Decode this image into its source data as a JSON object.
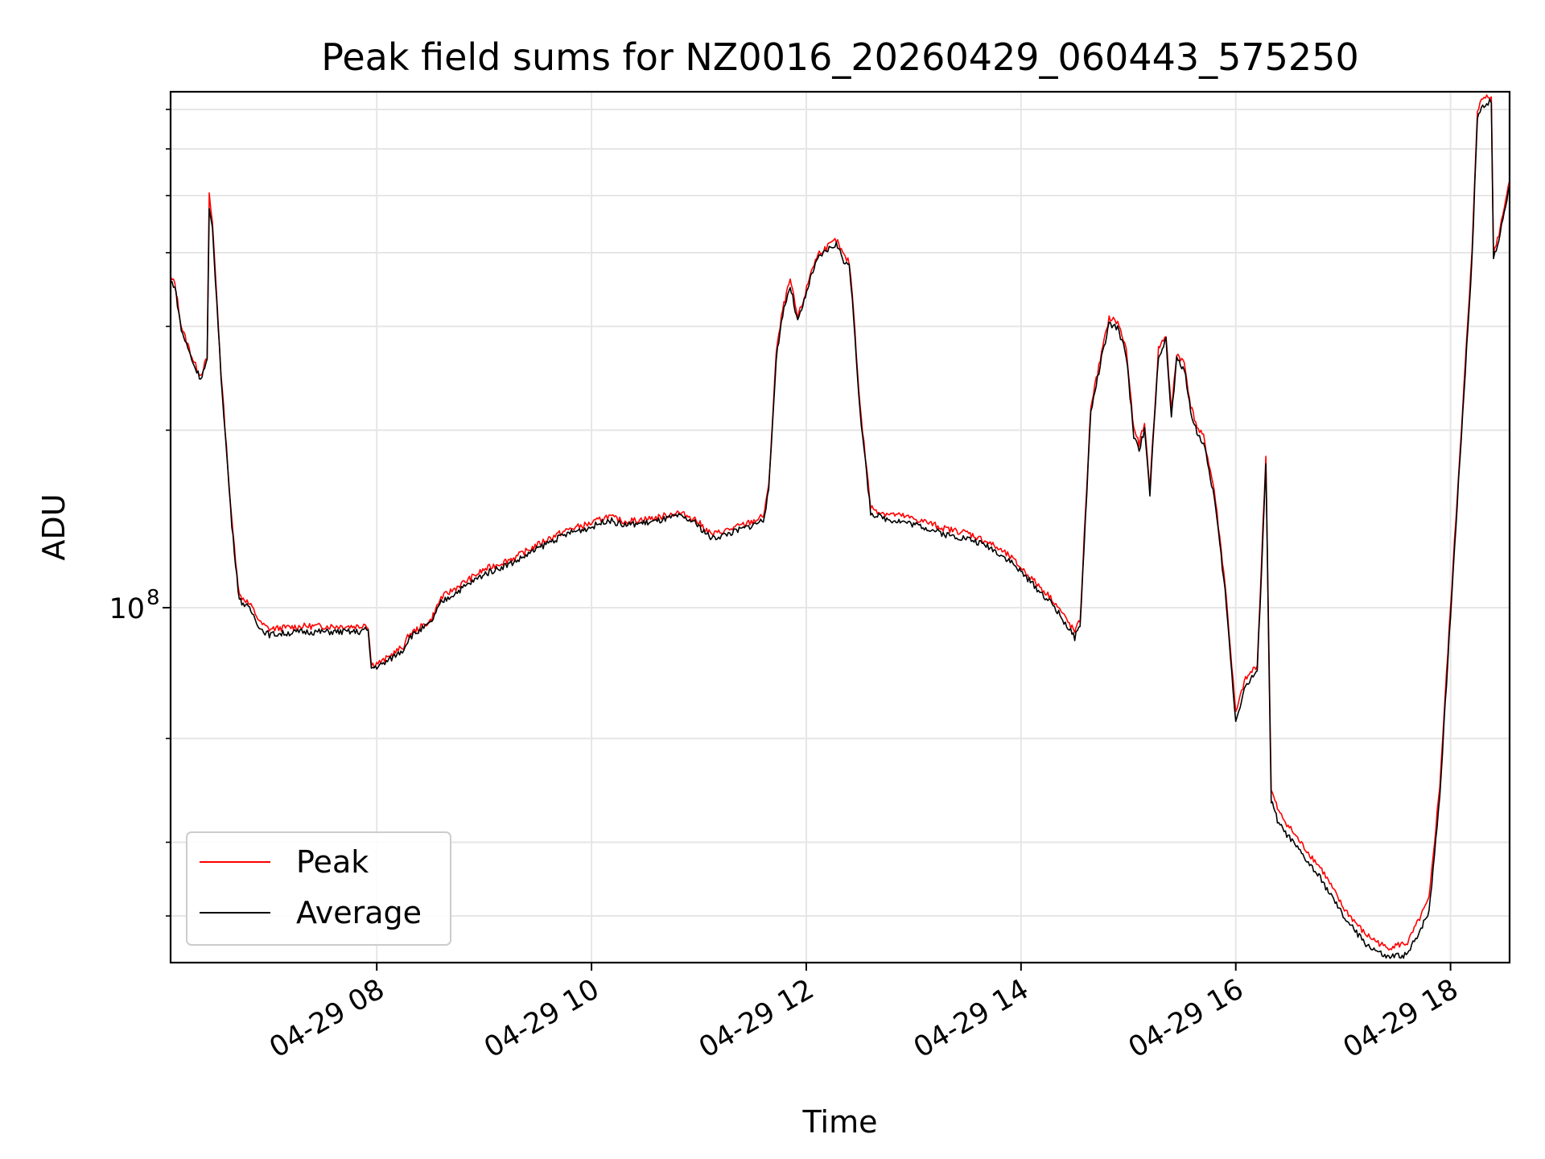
{
  "chart_data": {
    "type": "line",
    "title": "Peak field sums for NZ0016_20260429_060443_575250",
    "xlabel": "Time",
    "ylabel": "ADU",
    "x_unit": "hours",
    "xlim": [
      6.08,
      18.55
    ],
    "ylim": [
      25000000,
      750000000
    ],
    "yscale": "log",
    "grid": true,
    "legend_position": "lower-left",
    "x_ticks": [
      {
        "value": 8,
        "label": "04-29 08"
      },
      {
        "value": 10,
        "label": "04-29 10"
      },
      {
        "value": 12,
        "label": "04-29 12"
      },
      {
        "value": 14,
        "label": "04-29 14"
      },
      {
        "value": 16,
        "label": "04-29 16"
      },
      {
        "value": 18,
        "label": "04-29 18"
      }
    ],
    "y_major_ticks": [
      {
        "value": 100000000,
        "base": "10",
        "exponent": "8"
      }
    ],
    "y_minor_ticks": [
      30000000,
      40000000,
      60000000,
      200000000,
      300000000,
      400000000,
      500000000,
      600000000,
      700000000
    ],
    "series": [
      {
        "name": "Peak",
        "color": "#ff0000",
        "points": [
          [
            6.08,
            362
          ],
          [
            6.12,
            355
          ],
          [
            6.18,
            300
          ],
          [
            6.3,
            260
          ],
          [
            6.36,
            248
          ],
          [
            6.42,
            265
          ],
          [
            6.44,
            500
          ],
          [
            6.47,
            450
          ],
          [
            6.55,
            250
          ],
          [
            6.65,
            140
          ],
          [
            6.72,
            105
          ],
          [
            6.78,
            103
          ],
          [
            6.84,
            100
          ],
          [
            6.92,
            94
          ],
          [
            7.0,
            92
          ],
          [
            7.3,
            93
          ],
          [
            7.6,
            93
          ],
          [
            7.85,
            93
          ],
          [
            7.88,
            94
          ],
          [
            7.92,
            93
          ],
          [
            7.95,
            80
          ],
          [
            8.05,
            81
          ],
          [
            8.25,
            86
          ],
          [
            8.3,
            90
          ],
          [
            8.5,
            95
          ],
          [
            8.6,
            104
          ],
          [
            8.8,
            110
          ],
          [
            9.0,
            116
          ],
          [
            9.3,
            122
          ],
          [
            9.6,
            131
          ],
          [
            9.8,
            136
          ],
          [
            10.0,
            139
          ],
          [
            10.15,
            143
          ],
          [
            10.3,
            140
          ],
          [
            10.6,
            142
          ],
          [
            10.8,
            145
          ],
          [
            10.95,
            142
          ],
          [
            11.12,
            133
          ],
          [
            11.3,
            136
          ],
          [
            11.5,
            140
          ],
          [
            11.6,
            143
          ],
          [
            11.65,
            160
          ],
          [
            11.72,
            270
          ],
          [
            11.78,
            320
          ],
          [
            11.85,
            360
          ],
          [
            11.92,
            310
          ],
          [
            11.98,
            335
          ],
          [
            12.05,
            375
          ],
          [
            12.12,
            400
          ],
          [
            12.2,
            410
          ],
          [
            12.28,
            420
          ],
          [
            12.35,
            395
          ],
          [
            12.4,
            385
          ],
          [
            12.43,
            340
          ],
          [
            12.5,
            220
          ],
          [
            12.6,
            148
          ],
          [
            12.7,
            145
          ],
          [
            12.9,
            143
          ],
          [
            13.1,
            140
          ],
          [
            13.3,
            136
          ],
          [
            13.5,
            134
          ],
          [
            13.7,
            129
          ],
          [
            13.9,
            122
          ],
          [
            14.1,
            112
          ],
          [
            14.3,
            103
          ],
          [
            14.5,
            91
          ],
          [
            14.55,
            95
          ],
          [
            14.65,
            220
          ],
          [
            14.75,
            270
          ],
          [
            14.82,
            310
          ],
          [
            14.9,
            305
          ],
          [
            14.98,
            275
          ],
          [
            15.05,
            200
          ],
          [
            15.1,
            190
          ],
          [
            15.15,
            205
          ],
          [
            15.2,
            160
          ],
          [
            15.28,
            275
          ],
          [
            15.35,
            290
          ],
          [
            15.4,
            215
          ],
          [
            15.45,
            270
          ],
          [
            15.52,
            260
          ],
          [
            15.58,
            220
          ],
          [
            15.65,
            200
          ],
          [
            15.7,
            195
          ],
          [
            15.8,
            158
          ],
          [
            15.9,
            110
          ],
          [
            16.0,
            66
          ],
          [
            16.08,
            75
          ],
          [
            16.15,
            78
          ],
          [
            16.2,
            80
          ],
          [
            16.28,
            180
          ],
          [
            16.33,
            49
          ],
          [
            16.4,
            45
          ],
          [
            16.6,
            40
          ],
          [
            16.8,
            36
          ],
          [
            17.0,
            31
          ],
          [
            17.2,
            28
          ],
          [
            17.4,
            26.5
          ],
          [
            17.6,
            27
          ],
          [
            17.8,
            32
          ],
          [
            17.9,
            50
          ],
          [
            18.0,
            100
          ],
          [
            18.1,
            200
          ],
          [
            18.2,
            400
          ],
          [
            18.25,
            700
          ],
          [
            18.3,
            730
          ],
          [
            18.35,
            740
          ],
          [
            18.38,
            740
          ],
          [
            18.4,
            400
          ],
          [
            18.45,
            430
          ],
          [
            18.5,
            480
          ],
          [
            18.55,
            530
          ]
        ]
      },
      {
        "name": "Average",
        "color": "#000000",
        "points": [
          [
            6.08,
            358
          ],
          [
            6.12,
            351
          ],
          [
            6.18,
            296
          ],
          [
            6.3,
            257
          ],
          [
            6.36,
            245
          ],
          [
            6.42,
            262
          ],
          [
            6.44,
            470
          ],
          [
            6.47,
            440
          ],
          [
            6.55,
            247
          ],
          [
            6.65,
            138
          ],
          [
            6.72,
            103
          ],
          [
            6.78,
            101
          ],
          [
            6.84,
            98
          ],
          [
            6.92,
            92
          ],
          [
            7.0,
            90
          ],
          [
            7.3,
            91
          ],
          [
            7.6,
            91
          ],
          [
            7.85,
            91
          ],
          [
            7.88,
            92
          ],
          [
            7.92,
            91
          ],
          [
            7.95,
            79
          ],
          [
            8.05,
            80
          ],
          [
            8.25,
            85
          ],
          [
            8.3,
            89
          ],
          [
            8.5,
            94
          ],
          [
            8.6,
            102
          ],
          [
            8.8,
            108
          ],
          [
            9.0,
            114
          ],
          [
            9.3,
            120
          ],
          [
            9.6,
            129
          ],
          [
            9.8,
            134
          ],
          [
            10.0,
            137
          ],
          [
            10.15,
            141
          ],
          [
            10.3,
            138
          ],
          [
            10.6,
            140
          ],
          [
            10.8,
            143
          ],
          [
            10.95,
            140
          ],
          [
            11.12,
            131
          ],
          [
            11.3,
            134
          ],
          [
            11.5,
            138
          ],
          [
            11.6,
            141
          ],
          [
            11.65,
            157
          ],
          [
            11.72,
            265
          ],
          [
            11.78,
            315
          ],
          [
            11.85,
            352
          ],
          [
            11.92,
            305
          ],
          [
            11.98,
            330
          ],
          [
            12.05,
            368
          ],
          [
            12.12,
            393
          ],
          [
            12.2,
            405
          ],
          [
            12.28,
            414
          ],
          [
            12.35,
            388
          ],
          [
            12.4,
            378
          ],
          [
            12.43,
            335
          ],
          [
            12.5,
            215
          ],
          [
            12.6,
            145
          ],
          [
            12.7,
            142
          ],
          [
            12.9,
            140
          ],
          [
            13.1,
            137
          ],
          [
            13.3,
            133
          ],
          [
            13.5,
            131
          ],
          [
            13.7,
            127
          ],
          [
            13.9,
            120
          ],
          [
            14.1,
            110
          ],
          [
            14.3,
            101
          ],
          [
            14.5,
            89
          ],
          [
            14.55,
            93
          ],
          [
            14.65,
            215
          ],
          [
            14.75,
            265
          ],
          [
            14.82,
            302
          ],
          [
            14.9,
            298
          ],
          [
            14.98,
            268
          ],
          [
            15.05,
            196
          ],
          [
            15.1,
            186
          ],
          [
            15.15,
            200
          ],
          [
            15.2,
            156
          ],
          [
            15.28,
            268
          ],
          [
            15.35,
            284
          ],
          [
            15.4,
            210
          ],
          [
            15.45,
            264
          ],
          [
            15.52,
            254
          ],
          [
            15.58,
            215
          ],
          [
            15.65,
            196
          ],
          [
            15.7,
            190
          ],
          [
            15.8,
            154
          ],
          [
            15.9,
            107
          ],
          [
            16.0,
            64
          ],
          [
            16.08,
            73
          ],
          [
            16.15,
            76
          ],
          [
            16.2,
            78
          ],
          [
            16.28,
            175
          ],
          [
            16.33,
            47
          ],
          [
            16.4,
            43
          ],
          [
            16.6,
            38.5
          ],
          [
            16.8,
            34.5
          ],
          [
            17.0,
            30
          ],
          [
            17.2,
            27
          ],
          [
            17.4,
            25.5
          ],
          [
            17.6,
            25.8
          ],
          [
            17.8,
            30.5
          ],
          [
            17.9,
            48
          ],
          [
            18.0,
            97
          ],
          [
            18.1,
            195
          ],
          [
            18.2,
            390
          ],
          [
            18.25,
            680
          ],
          [
            18.3,
            710
          ],
          [
            18.35,
            720
          ],
          [
            18.38,
            720
          ],
          [
            18.4,
            390
          ],
          [
            18.45,
            420
          ],
          [
            18.5,
            470
          ],
          [
            18.55,
            520
          ]
        ]
      }
    ],
    "y_values_scale": 1000000
  }
}
